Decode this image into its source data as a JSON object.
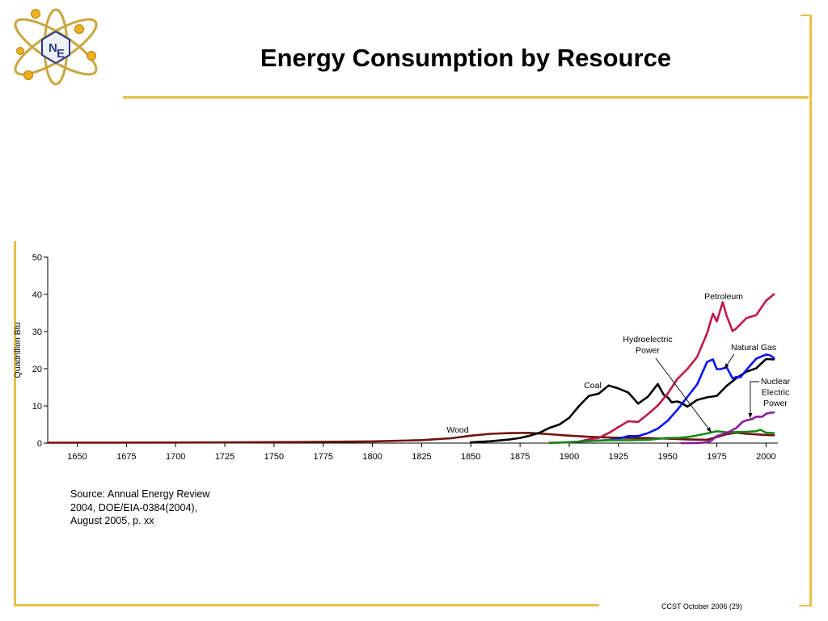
{
  "slide": {
    "title": "Energy Consumption by Resource",
    "logo_text": [
      "N",
      "E"
    ],
    "source_lines": [
      "Source:  Annual Energy Review",
      "2004, DOE/EIA-0384(2004),",
      "August 2005, p. xx"
    ],
    "footer": "CCST October 2006 (29)"
  },
  "colors": {
    "frame": "#e6c04a",
    "petroleum": "#c0174a",
    "natural_gas": "#0a14ee",
    "coal": "#000000",
    "wood": "#6e1410",
    "hydroelectric": "#188a18",
    "nuclear": "#8a1a9a"
  },
  "chart_data": {
    "type": "line",
    "title": "",
    "xlabel": "",
    "ylabel": "Quadrillion Btu",
    "xlim": [
      1635,
      2006
    ],
    "ylim": [
      0,
      50
    ],
    "yticks": [
      0,
      10,
      20,
      30,
      40,
      50
    ],
    "xticks": [
      1650,
      1675,
      1700,
      1725,
      1750,
      1775,
      1800,
      1825,
      1850,
      1875,
      1900,
      1925,
      1950,
      1975,
      2000
    ],
    "grid": false,
    "series": [
      {
        "name": "Wood",
        "key": "wood",
        "x": [
          1635,
          1700,
          1750,
          1775,
          1800,
          1825,
          1840,
          1850,
          1860,
          1870,
          1880,
          1890,
          1900,
          1910,
          1920,
          1930,
          1940,
          1950,
          1960,
          1970,
          1980,
          1985,
          1990,
          2000,
          2004
        ],
        "y": [
          0.1,
          0.15,
          0.25,
          0.35,
          0.45,
          0.8,
          1.3,
          2.0,
          2.5,
          2.7,
          2.75,
          2.4,
          2.0,
          1.7,
          1.5,
          1.4,
          1.35,
          1.2,
          1.0,
          0.9,
          2.4,
          2.8,
          2.5,
          2.2,
          2.1
        ]
      },
      {
        "name": "Coal",
        "key": "coal",
        "x": [
          1850,
          1860,
          1870,
          1875,
          1880,
          1885,
          1890,
          1895,
          1900,
          1905,
          1910,
          1915,
          1920,
          1925,
          1930,
          1935,
          1940,
          1945,
          1948,
          1950,
          1952,
          1955,
          1957,
          1960,
          1965,
          1970,
          1975,
          1980,
          1985,
          1990,
          1995,
          2000,
          2004
        ],
        "y": [
          0.2,
          0.5,
          1.0,
          1.4,
          2.0,
          2.8,
          4.1,
          5.0,
          6.8,
          10.0,
          12.7,
          13.3,
          15.5,
          14.7,
          13.6,
          10.6,
          12.5,
          15.9,
          13.0,
          12.3,
          11.0,
          11.2,
          10.8,
          9.8,
          11.6,
          12.3,
          12.7,
          15.4,
          17.5,
          19.2,
          20.1,
          22.6,
          22.5
        ]
      },
      {
        "name": "Petroleum",
        "key": "petroleum",
        "x": [
          1890,
          1900,
          1905,
          1910,
          1915,
          1920,
          1925,
          1930,
          1935,
          1940,
          1945,
          1950,
          1955,
          1960,
          1965,
          1970,
          1973,
          1975,
          1978,
          1980,
          1983,
          1985,
          1990,
          1995,
          2000,
          2004
        ],
        "y": [
          0.1,
          0.2,
          0.4,
          1.0,
          1.4,
          2.7,
          4.3,
          5.9,
          5.7,
          7.8,
          10.1,
          13.3,
          17.3,
          19.9,
          23.2,
          29.5,
          34.8,
          32.7,
          37.9,
          34.2,
          30.1,
          30.9,
          33.6,
          34.4,
          38.3,
          40.0
        ]
      },
      {
        "name": "Natural Gas",
        "key": "natural_gas",
        "x": [
          1900,
          1910,
          1920,
          1925,
          1930,
          1935,
          1940,
          1945,
          1950,
          1955,
          1960,
          1965,
          1970,
          1973,
          1975,
          1977,
          1980,
          1983,
          1985,
          1987,
          1990,
          1995,
          2000,
          2002,
          2004
        ],
        "y": [
          0.25,
          0.55,
          0.8,
          1.2,
          1.9,
          1.9,
          2.7,
          3.9,
          6.0,
          9.0,
          12.4,
          15.8,
          21.8,
          22.5,
          19.9,
          19.9,
          20.4,
          17.4,
          17.8,
          17.7,
          19.7,
          22.7,
          23.8,
          23.6,
          22.9
        ]
      },
      {
        "name": "Hydroelectric Power",
        "key": "hydroelectric",
        "x": [
          1890,
          1900,
          1910,
          1920,
          1930,
          1940,
          1950,
          1955,
          1960,
          1965,
          1970,
          1975,
          1980,
          1985,
          1990,
          1995,
          1997,
          2000,
          2004
        ],
        "y": [
          0.0,
          0.25,
          0.54,
          0.78,
          0.79,
          0.88,
          1.4,
          1.4,
          1.6,
          2.06,
          2.6,
          3.2,
          2.9,
          2.97,
          3.05,
          3.2,
          3.6,
          2.8,
          2.7
        ]
      },
      {
        "name": "Nuclear Electric Power",
        "key": "nuclear",
        "x": [
          1957,
          1960,
          1965,
          1968,
          1970,
          1972,
          1975,
          1980,
          1985,
          1988,
          1990,
          1993,
          1995,
          1998,
          2000,
          2002,
          2004
        ],
        "y": [
          0.0,
          0.0,
          0.04,
          0.14,
          0.24,
          0.58,
          1.9,
          2.7,
          4.1,
          5.7,
          6.1,
          6.5,
          7.1,
          7.07,
          7.86,
          8.15,
          8.23
        ]
      }
    ],
    "annotations": [
      {
        "lines": [
          "Petroleum"
        ],
        "series": "petroleum"
      },
      {
        "lines": [
          "Hydroelectric",
          "Power"
        ],
        "series": "hydroelectric",
        "arrow_x": 1972,
        "arrow_y": 3.0
      },
      {
        "lines": [
          "Natural Gas"
        ],
        "series": "natural_gas",
        "arrow_x": 1979,
        "arrow_y": 20.1
      },
      {
        "lines": [
          "Nuclear",
          "Electric",
          "Power"
        ],
        "series": "nuclear",
        "arrow_x": 1992,
        "arrow_y": 6.4
      },
      {
        "lines": [
          "Coal"
        ],
        "series": "coal"
      },
      {
        "lines": [
          "Wood"
        ],
        "series": "wood"
      }
    ]
  }
}
